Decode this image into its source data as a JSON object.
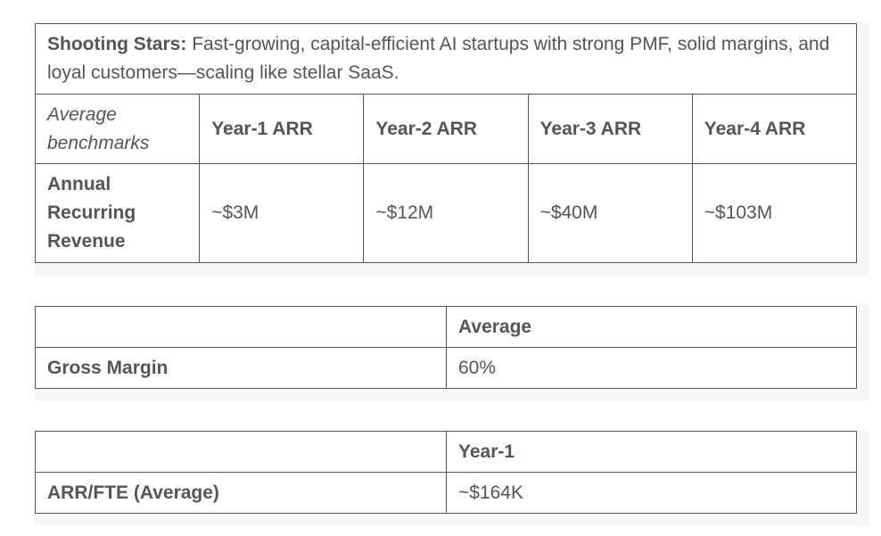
{
  "tables": [
    {
      "caption": {
        "label": "Shooting Stars:",
        "text": "Fast-growing, capital-efficient AI startups with strong PMF, solid margins, and loyal customers—scaling like stellar SaaS."
      },
      "header": [
        "Average benchmarks",
        "Year-1 ARR",
        "Year-2 ARR",
        "Year-3 ARR",
        "Year-4 ARR"
      ],
      "rows": [
        [
          "Annual Recurring Revenue",
          "~$3M",
          "~$12M",
          "~$40M",
          "~$103M"
        ]
      ]
    },
    {
      "columns": [
        "Average"
      ],
      "rows": [
        [
          "Gross Margin",
          "60%"
        ]
      ]
    },
    {
      "columns": [
        "Year-1"
      ],
      "rows": [
        [
          "ARR/FTE (Average)",
          "~$164K"
        ]
      ]
    }
  ]
}
